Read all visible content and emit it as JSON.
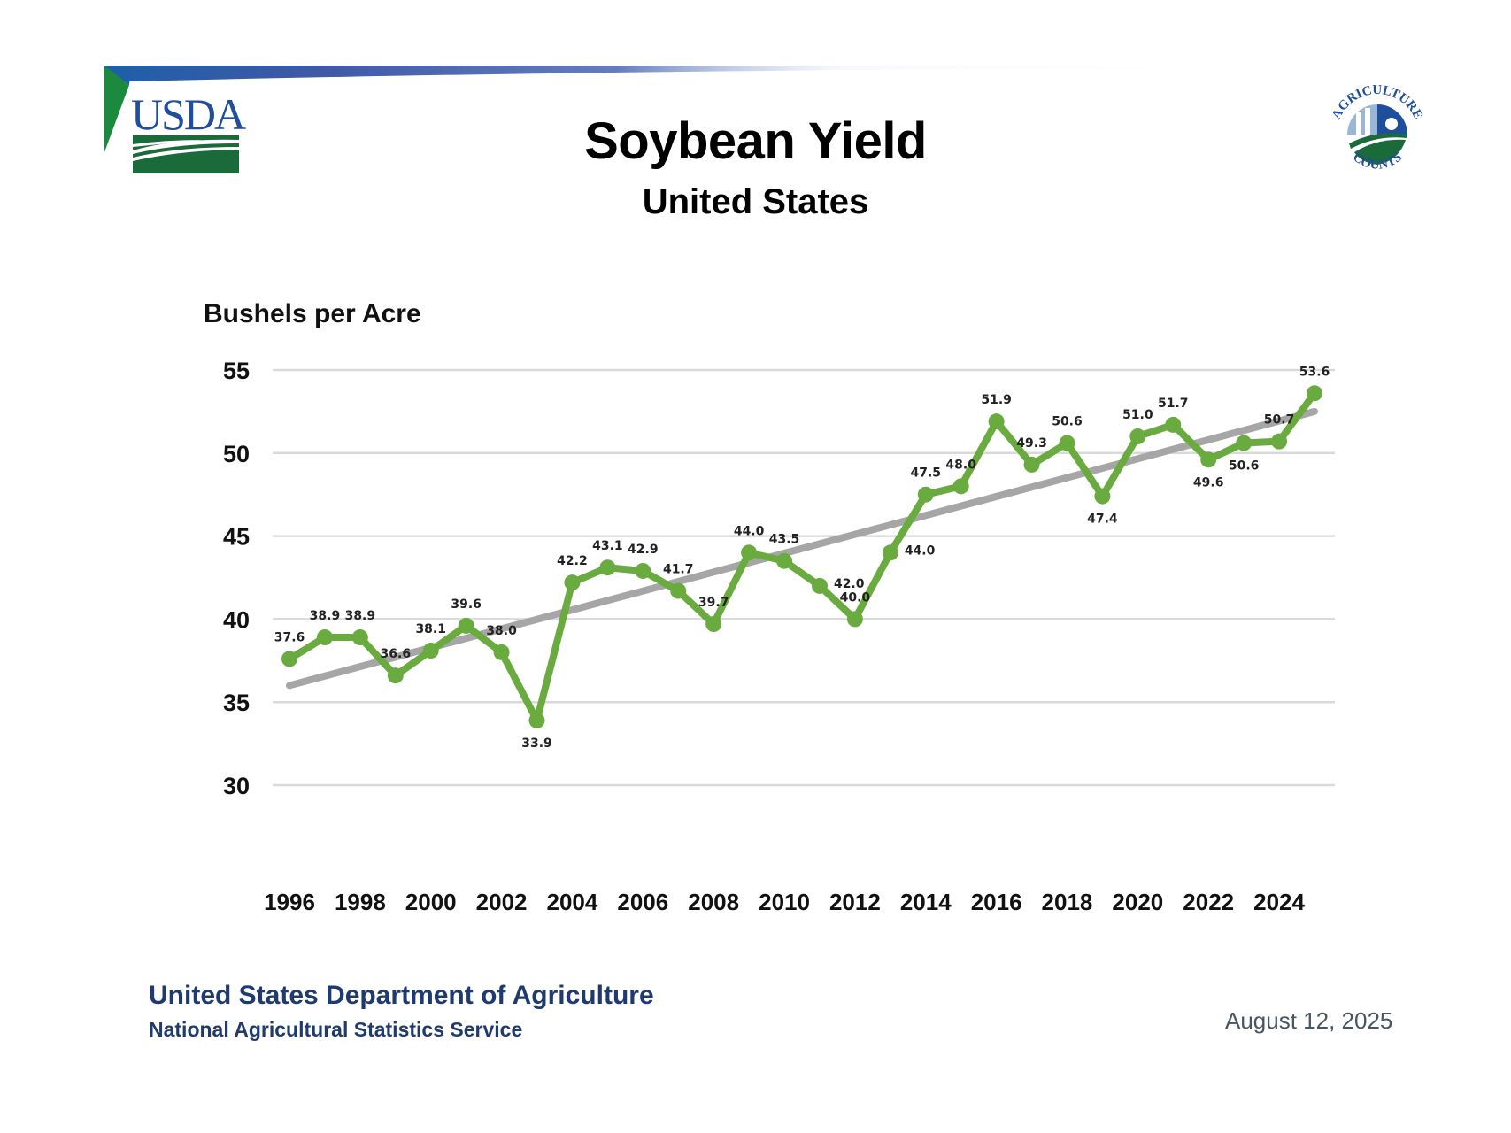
{
  "header": {
    "agency_logo": "USDA",
    "agency_logo_icon": "usda-logo-icon",
    "badge_logo": "Agriculture Counts",
    "badge_logo_top_text": "AGRICULTURE",
    "badge_logo_bottom_text": "COUNTS"
  },
  "colors": {
    "series": "#6aab3f",
    "trend": "#a6a6a6",
    "grid": "#d9d9d9",
    "usda_blue": "#1f4e9a",
    "usda_green": "#1b6a3a",
    "footer_text": "#1f3a6e"
  },
  "chart_data": {
    "type": "line",
    "title": "Soybean Yield",
    "subtitle": "United States",
    "xlabel": "",
    "ylabel": "Bushels per Acre",
    "ylim": [
      30,
      55
    ],
    "yticks": [
      30,
      35,
      40,
      45,
      50,
      55
    ],
    "xticks": [
      1996,
      1998,
      2000,
      2002,
      2004,
      2006,
      2008,
      2010,
      2012,
      2014,
      2016,
      2018,
      2020,
      2022,
      2024
    ],
    "xlim": [
      1996,
      2025
    ],
    "grid": true,
    "legend": "none",
    "x": [
      1996,
      1997,
      1998,
      1999,
      2000,
      2001,
      2002,
      2003,
      2004,
      2005,
      2006,
      2007,
      2008,
      2009,
      2010,
      2011,
      2012,
      2013,
      2014,
      2015,
      2016,
      2017,
      2018,
      2019,
      2020,
      2021,
      2022,
      2023,
      2024,
      2025
    ],
    "series": [
      {
        "name": "Yield",
        "values": [
          37.6,
          38.9,
          38.9,
          36.6,
          38.1,
          39.6,
          38.0,
          33.9,
          42.2,
          43.1,
          42.9,
          41.7,
          39.7,
          44.0,
          43.5,
          42.0,
          40.0,
          44.0,
          47.5,
          48.0,
          51.9,
          49.3,
          50.6,
          47.4,
          51.0,
          51.7,
          49.6,
          50.6,
          50.7,
          53.6
        ],
        "labels": [
          "37.6",
          "38.9",
          "38.9",
          "36.6",
          "38.1",
          "39.6",
          "38.0",
          "33.9",
          "42.2",
          "43.1",
          "42.9",
          "41.7",
          "39.7",
          "44.0",
          "43.5",
          "42.0",
          "40.0",
          "44.0",
          "47.5",
          "48.0",
          "51.9",
          "49.3",
          "50.6",
          "47.4",
          "51.0",
          "51.7",
          "49.6",
          "50.6",
          "50.7",
          "53.6"
        ],
        "label_pos": [
          "above",
          "above",
          "above",
          "above",
          "above",
          "above",
          "above",
          "below",
          "above",
          "above",
          "above",
          "above",
          "above",
          "above",
          "above",
          "right",
          "above",
          "right",
          "above",
          "above",
          "above",
          "above",
          "above",
          "below",
          "above",
          "above",
          "below",
          "below",
          "above",
          "above"
        ]
      },
      {
        "name": "Trend",
        "type": "trendline",
        "x": [
          1996,
          2025
        ],
        "values": [
          36.0,
          52.5
        ]
      }
    ]
  },
  "footer": {
    "org_line1": "United States Department of Agriculture",
    "org_line2": "National Agricultural Statistics Service",
    "date": "August 12, 2025"
  }
}
